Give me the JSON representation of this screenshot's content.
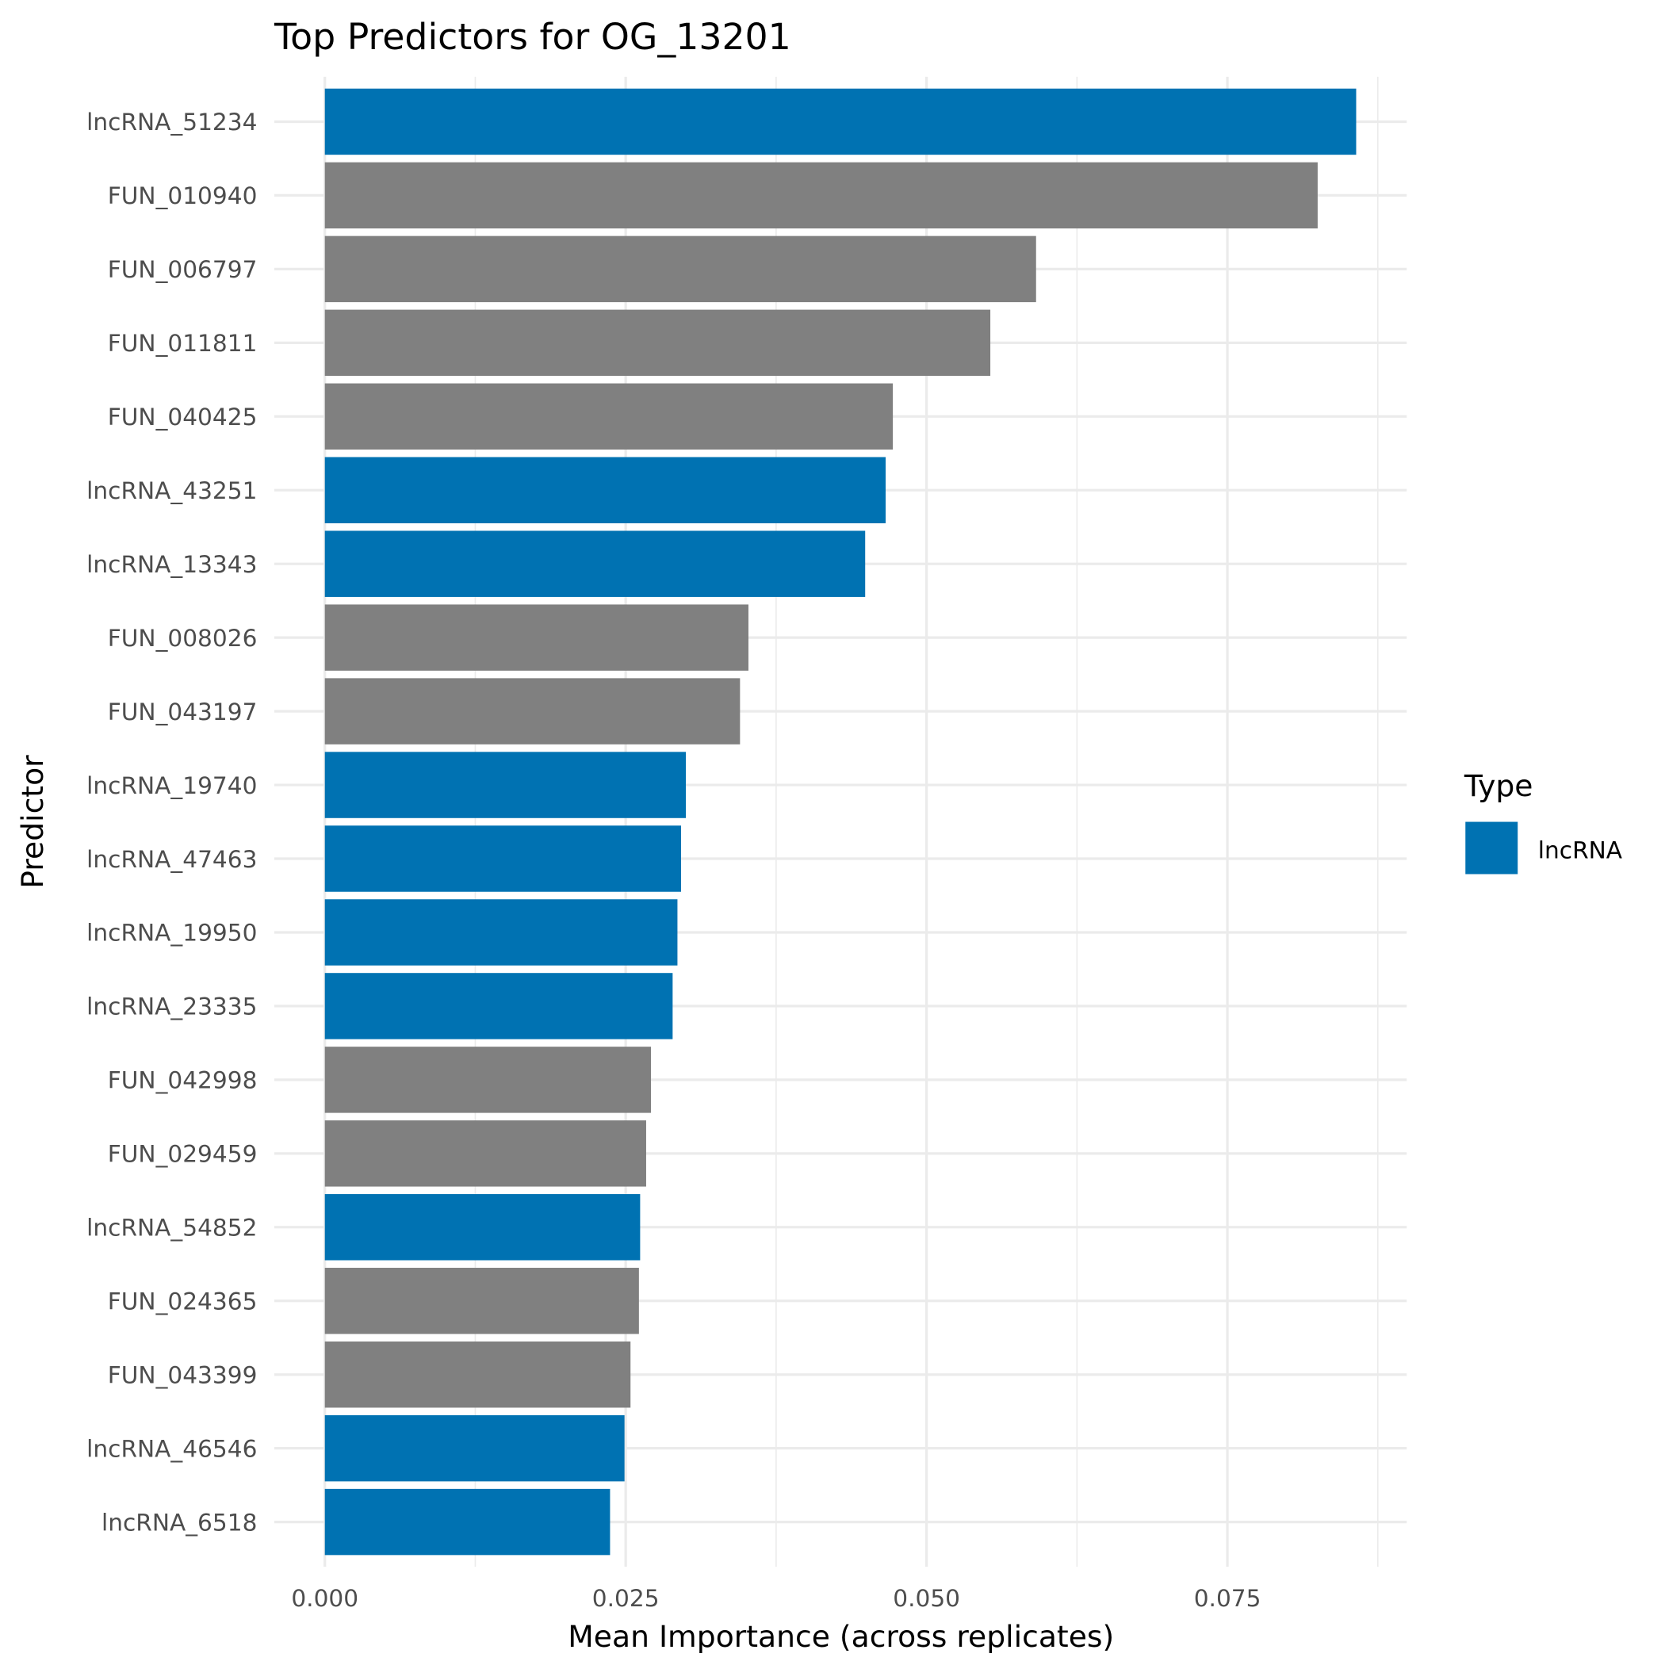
{
  "chart_data": {
    "type": "bar",
    "orientation": "horizontal",
    "title": "Top Predictors for OG_13201",
    "xlabel": "Mean Importance (across replicates)",
    "ylabel": "Predictor",
    "xlim": [
      -0.0042,
      0.0899
    ],
    "xticks": [
      0.0,
      0.025,
      0.05,
      0.075
    ],
    "xtick_labels": [
      "0.000",
      "0.025",
      "0.050",
      "0.075"
    ],
    "grid": true,
    "categories": [
      "lncRNA_51234",
      "FUN_010940",
      "FUN_006797",
      "FUN_011811",
      "FUN_040425",
      "lncRNA_43251",
      "lncRNA_13343",
      "FUN_008026",
      "FUN_043197",
      "lncRNA_19740",
      "lncRNA_47463",
      "lncRNA_19950",
      "lncRNA_23335",
      "FUN_042998",
      "FUN_029459",
      "lncRNA_54852",
      "FUN_024365",
      "FUN_043399",
      "lncRNA_46546",
      "lncRNA_6518"
    ],
    "values": [
      0.0857,
      0.0825,
      0.0591,
      0.0553,
      0.0472,
      0.0466,
      0.0449,
      0.0352,
      0.0345,
      0.03,
      0.0296,
      0.0293,
      0.0289,
      0.0271,
      0.0267,
      0.0262,
      0.0261,
      0.0254,
      0.0249,
      0.0237
    ],
    "types": [
      "lncRNA",
      "FUN",
      "FUN",
      "FUN",
      "FUN",
      "lncRNA",
      "lncRNA",
      "FUN",
      "FUN",
      "lncRNA",
      "lncRNA",
      "lncRNA",
      "lncRNA",
      "FUN",
      "FUN",
      "lncRNA",
      "FUN",
      "FUN",
      "lncRNA",
      "lncRNA"
    ],
    "colors": {
      "lncRNA": "#0072B2",
      "FUN": "#808080"
    },
    "legend": {
      "title": "Type",
      "entries": [
        "lncRNA"
      ],
      "placement": "right"
    }
  }
}
